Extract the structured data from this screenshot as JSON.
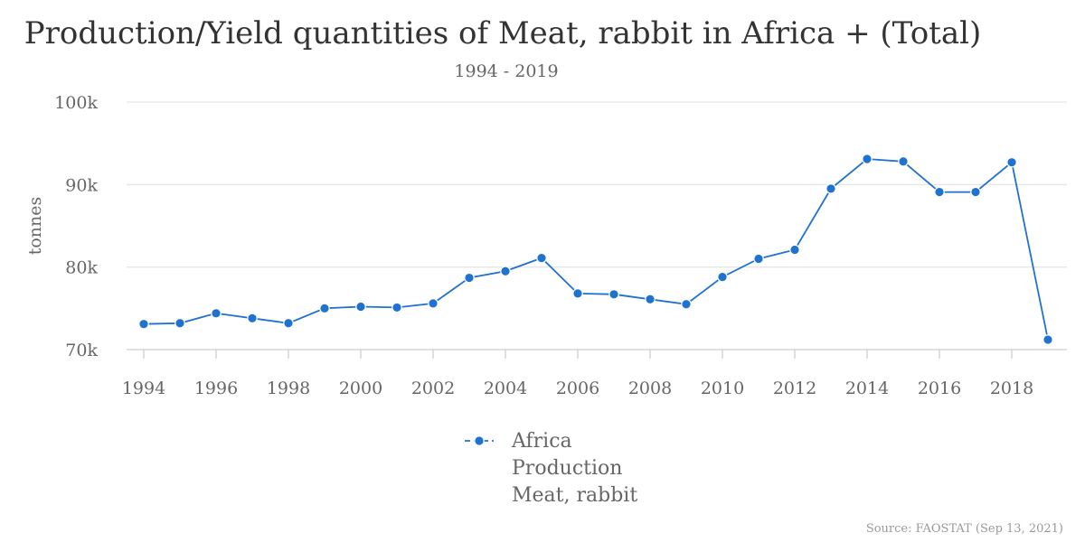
{
  "chart_data": {
    "type": "line",
    "title": "Production/Yield quantities of Meat, rabbit in Africa + (Total)",
    "subtitle": "1994 - 2019",
    "ylabel": "tonnes",
    "xlabel": "",
    "xlim": [
      1994,
      2019
    ],
    "ylim": [
      70000,
      100000
    ],
    "yticks": [
      70000,
      80000,
      90000,
      100000
    ],
    "ytick_labels": [
      "70k",
      "80k",
      "90k",
      "100k"
    ],
    "xticks": [
      1994,
      1996,
      1998,
      2000,
      2002,
      2004,
      2006,
      2008,
      2010,
      2012,
      2014,
      2016,
      2018
    ],
    "xtick_labels": [
      "1994",
      "1996",
      "1998",
      "2000",
      "2002",
      "2004",
      "2006",
      "2008",
      "2010",
      "2012",
      "2014",
      "2016",
      "2018"
    ],
    "grid": true,
    "legend_position": "bottom-center",
    "series": [
      {
        "name_lines": [
          "Africa",
          "Production",
          "Meat, rabbit"
        ],
        "color": "#1f72cf",
        "x": [
          1994,
          1995,
          1996,
          1997,
          1998,
          1999,
          2000,
          2001,
          2002,
          2003,
          2004,
          2005,
          2006,
          2007,
          2008,
          2009,
          2010,
          2011,
          2012,
          2013,
          2014,
          2015,
          2016,
          2017,
          2018,
          2019
        ],
        "y": [
          73100,
          73200,
          74400,
          73800,
          73200,
          75000,
          75200,
          75100,
          75600,
          78700,
          79500,
          81100,
          76800,
          76700,
          76100,
          75500,
          78800,
          81000,
          82100,
          89500,
          93100,
          92800,
          89100,
          89100,
          92700,
          71200
        ]
      }
    ]
  },
  "source": "Source: FAOSTAT (Sep 13, 2021)"
}
